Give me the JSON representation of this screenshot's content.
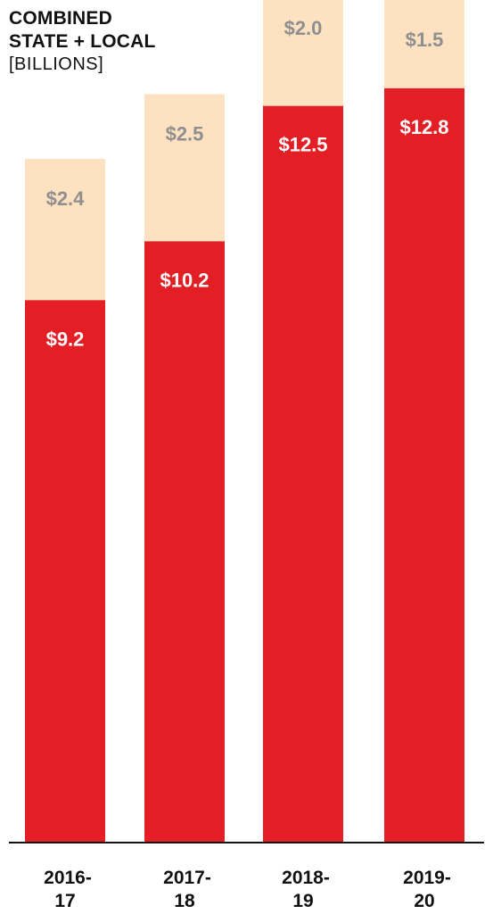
{
  "title_lines": [
    "COMBINED",
    "STATE + LOCAL"
  ],
  "unit_label": "[BILLIONS]",
  "colors": {
    "bottom": "#e31e24",
    "top": "#fde1c0",
    "top_text": "#8f8f8f",
    "bottom_text": "#ffffff",
    "axis": "#111111"
  },
  "chart_data": {
    "type": "bar",
    "stacked": true,
    "categories": [
      "2016-17",
      "2017-18",
      "2018-19",
      "2019-20"
    ],
    "category_label_lines": [
      [
        "2016-",
        "17"
      ],
      [
        "2017-",
        "18"
      ],
      [
        "2018-",
        "19"
      ],
      [
        "2019-",
        "20"
      ]
    ],
    "series": [
      {
        "values": [
          9.2,
          10.2,
          12.5,
          12.8
        ],
        "labels": [
          "$9.2",
          "$10.2",
          "$12.5",
          "$12.8"
        ]
      },
      {
        "values": [
          2.4,
          2.5,
          2.0,
          1.5
        ],
        "labels": [
          "$2.4",
          "$2.5",
          "$2.0",
          "$1.5"
        ]
      }
    ],
    "ylim": [
      0,
      14.3
    ],
    "grid": false,
    "legend": "none"
  }
}
